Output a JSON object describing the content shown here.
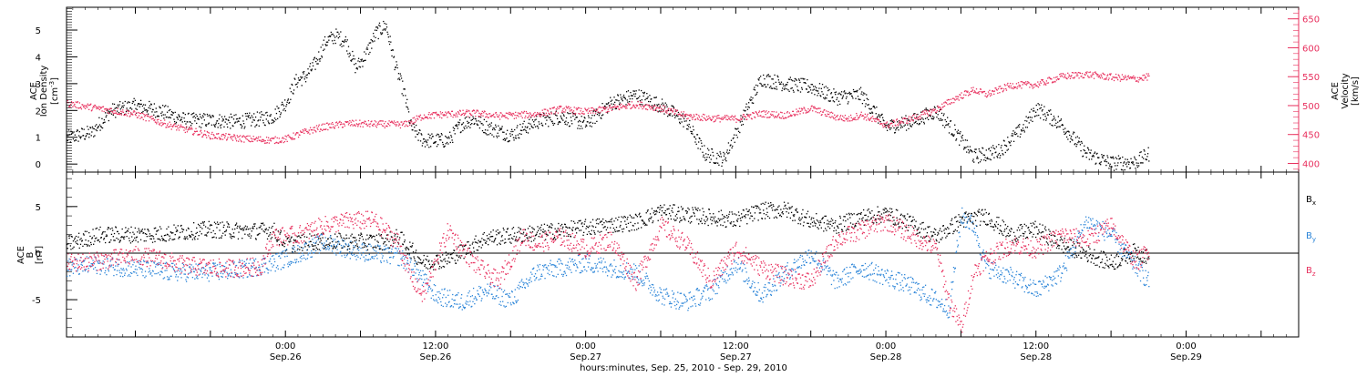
{
  "chart_data": [
    {
      "type": "scatter",
      "panel": "top",
      "y_left": {
        "label_lines": [
          "ACE",
          "Ion Density"
        ],
        "unit_base": "[cm",
        "unit_sup": "-3",
        "unit_end": "]",
        "range": [
          -0.3,
          5.85
        ],
        "ticks": [
          0,
          1,
          2,
          3,
          4,
          5
        ],
        "tick_labels": [
          "0",
          "1",
          "2",
          "3",
          "4",
          "5"
        ],
        "color": "#000000"
      },
      "y_right": {
        "label_lines": [
          "ACE",
          "Velocity",
          "[km/s]"
        ],
        "range": [
          385,
          670
        ],
        "ticks": [
          400,
          450,
          500,
          550,
          600,
          650
        ],
        "tick_labels": [
          "400",
          "450",
          "500",
          "550",
          "600",
          "650"
        ],
        "color": "#e8305e"
      },
      "series": [
        {
          "axis": "left",
          "color": "#000000",
          "knots": [
            [
              -17.5,
              1.0
            ],
            [
              -16.5,
              1.1
            ],
            [
              -15.5,
              1.2
            ],
            [
              -14,
              2.0
            ],
            [
              -12,
              2.2
            ],
            [
              -10,
              2.0
            ],
            [
              -8,
              1.65
            ],
            [
              -6,
              1.65
            ],
            [
              -4,
              1.6
            ],
            [
              -2,
              1.7
            ],
            [
              -1,
              1.8
            ],
            [
              0,
              2.3
            ],
            [
              0.8,
              3.1
            ],
            [
              1.6,
              3.3
            ],
            [
              2.4,
              3.8
            ],
            [
              3.2,
              4.6
            ],
            [
              4.0,
              4.8
            ],
            [
              4.8,
              4.6
            ],
            [
              5.6,
              3.6
            ],
            [
              6.4,
              4.1
            ],
            [
              7.2,
              4.9
            ],
            [
              8.0,
              5.2
            ],
            [
              8.8,
              3.6
            ],
            [
              9.5,
              2.6
            ],
            [
              10.0,
              1.4
            ],
            [
              11,
              0.9
            ],
            [
              12,
              0.9
            ],
            [
              13,
              0.9
            ],
            [
              14,
              1.5
            ],
            [
              15,
              1.7
            ],
            [
              16,
              1.4
            ],
            [
              18,
              1.1
            ],
            [
              20,
              1.6
            ],
            [
              22,
              1.8
            ],
            [
              24,
              1.5
            ],
            [
              26,
              2.3
            ],
            [
              28,
              2.6
            ],
            [
              30,
              2.2
            ],
            [
              32,
              1.6
            ],
            [
              33.5,
              0.4
            ],
            [
              35,
              0.2
            ],
            [
              37,
              2.2
            ],
            [
              38,
              3.2
            ],
            [
              40,
              3.0
            ],
            [
              42,
              2.9
            ],
            [
              44,
              2.5
            ],
            [
              46,
              2.6
            ],
            [
              48,
              1.4
            ],
            [
              50,
              1.6
            ],
            [
              52,
              2.0
            ],
            [
              53.5,
              1.2
            ],
            [
              55,
              0.3
            ],
            [
              57,
              0.5
            ],
            [
              59,
              1.4
            ],
            [
              60,
              2.1
            ],
            [
              62,
              1.5
            ],
            [
              64,
              0.4
            ],
            [
              66,
              0.05
            ],
            [
              68,
              0.1
            ],
            [
              69,
              0.4
            ]
          ]
        },
        {
          "axis": "right",
          "color": "#e8305e",
          "knots": [
            [
              -17.5,
              505
            ],
            [
              -15,
              496
            ],
            [
              -12,
              486
            ],
            [
              -9,
              465
            ],
            [
              -6,
              449
            ],
            [
              -3,
              443
            ],
            [
              -1,
              441
            ],
            [
              0,
              443
            ],
            [
              1.5,
              455
            ],
            [
              3,
              464
            ],
            [
              5,
              470
            ],
            [
              7,
              469
            ],
            [
              9.5,
              468
            ],
            [
              11,
              483
            ],
            [
              13,
              486
            ],
            [
              15,
              488
            ],
            [
              17,
              483
            ],
            [
              20,
              486
            ],
            [
              22,
              495
            ],
            [
              24,
              490
            ],
            [
              26,
              496
            ],
            [
              28,
              503
            ],
            [
              30,
              496
            ],
            [
              32,
              483
            ],
            [
              34,
              479
            ],
            [
              36,
              478
            ],
            [
              38,
              487
            ],
            [
              40,
              484
            ],
            [
              42,
              496
            ],
            [
              44,
              481
            ],
            [
              45,
              478
            ],
            [
              46,
              485
            ],
            [
              48,
              467
            ],
            [
              50,
              478
            ],
            [
              52,
              494
            ],
            [
              53.5,
              513
            ],
            [
              55,
              528
            ],
            [
              56,
              520
            ],
            [
              58,
              536
            ],
            [
              60,
              537
            ],
            [
              62,
              551
            ],
            [
              64,
              555
            ],
            [
              66,
              550
            ],
            [
              68,
              547
            ],
            [
              69,
              551
            ]
          ]
        }
      ]
    },
    {
      "type": "scatter",
      "panel": "bottom",
      "y_left": {
        "label_lines": [
          "ACE",
          "B",
          "[nT]"
        ],
        "range": [
          -9,
          8.7
        ],
        "ticks": [
          -5,
          0,
          5
        ],
        "tick_labels": [
          "-5",
          "0",
          "5"
        ],
        "zero_line": true
      },
      "legend": [
        {
          "base": "B",
          "sub": "x",
          "color": "#000000"
        },
        {
          "base": "B",
          "sub": "y",
          "color": "#2a84d8"
        },
        {
          "base": "B",
          "sub": "z",
          "color": "#e8305e"
        }
      ],
      "series": [
        {
          "name": "Bx",
          "color": "#000000",
          "knots": [
            [
              -17.5,
              1.0
            ],
            [
              -15,
              2.0
            ],
            [
              -10,
              2.1
            ],
            [
              -6,
              2.6
            ],
            [
              -3,
              2.4
            ],
            [
              -1,
              2.5
            ],
            [
              0,
              1.0
            ],
            [
              2,
              1.3
            ],
            [
              4,
              1.3
            ],
            [
              6,
              1.3
            ],
            [
              8,
              1.3
            ],
            [
              9,
              1.8
            ],
            [
              10,
              0.4
            ],
            [
              11,
              -1.0
            ],
            [
              13,
              -0.6
            ],
            [
              16,
              1.7
            ],
            [
              20,
              2.2
            ],
            [
              24,
              2.8
            ],
            [
              28,
              3.4
            ],
            [
              30,
              4.5
            ],
            [
              32,
              4.2
            ],
            [
              34,
              3.9
            ],
            [
              36,
              3.6
            ],
            [
              38,
              4.6
            ],
            [
              40,
              4.7
            ],
            [
              42,
              3.5
            ],
            [
              44,
              3.0
            ],
            [
              46,
              3.9
            ],
            [
              48,
              4.3
            ],
            [
              50,
              3.2
            ],
            [
              52,
              1.8
            ],
            [
              54,
              3.6
            ],
            [
              56,
              4.0
            ],
            [
              58,
              2.0
            ],
            [
              60,
              2.6
            ],
            [
              62,
              1.0
            ],
            [
              64,
              0
            ],
            [
              66,
              -1.0
            ],
            [
              68,
              0.3
            ],
            [
              69,
              -0.5
            ]
          ]
        },
        {
          "name": "By",
          "color": "#2a84d8",
          "knots": [
            [
              -17.5,
              -1.5
            ],
            [
              -15,
              -1.2
            ],
            [
              -12,
              -1.6
            ],
            [
              -9,
              -2.0
            ],
            [
              -6,
              -2.0
            ],
            [
              -3,
              -1.6
            ],
            [
              -1,
              -1.0
            ],
            [
              1,
              0
            ],
            [
              3,
              1.2
            ],
            [
              5,
              0.5
            ],
            [
              7,
              0.0
            ],
            [
              9,
              -0.3
            ],
            [
              10,
              -1.2
            ],
            [
              12,
              -4.5
            ],
            [
              14,
              -5.2
            ],
            [
              16,
              -4.0
            ],
            [
              18,
              -5.0
            ],
            [
              20,
              -2.0
            ],
            [
              24,
              -1.0
            ],
            [
              28,
              -2.0
            ],
            [
              30,
              -4.5
            ],
            [
              32,
              -5.2
            ],
            [
              34,
              -4.0
            ],
            [
              36,
              -1.0
            ],
            [
              38,
              -4.5
            ],
            [
              40,
              -2.0
            ],
            [
              42,
              0
            ],
            [
              44,
              -3.0
            ],
            [
              46,
              -1.5
            ],
            [
              48,
              -2.5
            ],
            [
              50,
              -3.5
            ],
            [
              52,
              -5.0
            ],
            [
              53,
              -6.0
            ],
            [
              54,
              4.0
            ],
            [
              55,
              3.0
            ],
            [
              56,
              -1.5
            ],
            [
              58,
              -2.5
            ],
            [
              60,
              -4.0
            ],
            [
              62,
              -2.0
            ],
            [
              64,
              3.5
            ],
            [
              66,
              2.0
            ],
            [
              68,
              -1.5
            ],
            [
              69,
              -3.0
            ]
          ]
        },
        {
          "name": "Bz",
          "color": "#e8305e",
          "knots": [
            [
              -17.5,
              -1.0
            ],
            [
              -15,
              -0.8
            ],
            [
              -12,
              -0.2
            ],
            [
              -10,
              -0.6
            ],
            [
              -8,
              -1.3
            ],
            [
              -5,
              -1.6
            ],
            [
              -2,
              -1.4
            ],
            [
              -1,
              1.8
            ],
            [
              1,
              2.0
            ],
            [
              3,
              3.0
            ],
            [
              5,
              3.5
            ],
            [
              7,
              3.6
            ],
            [
              8,
              2.4
            ],
            [
              9,
              1.2
            ],
            [
              10,
              -2.5
            ],
            [
              11,
              -4.5
            ],
            [
              12,
              -0.8
            ],
            [
              13,
              2.5
            ],
            [
              15,
              -1.0
            ],
            [
              17,
              -3.0
            ],
            [
              19,
              2.0
            ],
            [
              20,
              1.0
            ],
            [
              22,
              1.8
            ],
            [
              24,
              0.5
            ],
            [
              26,
              1.5
            ],
            [
              28,
              -3.0
            ],
            [
              30,
              3.0
            ],
            [
              32,
              1.0
            ],
            [
              34,
              -3.0
            ],
            [
              36,
              0.5
            ],
            [
              38,
              -1.5
            ],
            [
              40,
              -2.5
            ],
            [
              42,
              -3.0
            ],
            [
              44,
              1.5
            ],
            [
              46,
              2.5
            ],
            [
              48,
              3.5
            ],
            [
              50,
              2.0
            ],
            [
              52,
              0.5
            ],
            [
              53,
              -5.0
            ],
            [
              54,
              -8.0
            ],
            [
              55,
              -2.0
            ],
            [
              56,
              -0.5
            ],
            [
              58,
              1.0
            ],
            [
              60,
              0.5
            ],
            [
              62,
              2.0
            ],
            [
              64,
              1.5
            ],
            [
              66,
              3.0
            ],
            [
              68,
              -1.0
            ],
            [
              69,
              0.5
            ]
          ]
        }
      ]
    }
  ],
  "x_axis": {
    "range_hours": [
      -17.5,
      81.0
    ],
    "ticks": [
      {
        "hour": 0,
        "time": "0:00",
        "date": "Sep.26"
      },
      {
        "hour": 12,
        "time": "12:00",
        "date": "Sep.26"
      },
      {
        "hour": 24,
        "time": "0:00",
        "date": "Sep.27"
      },
      {
        "hour": 36,
        "time": "12:00",
        "date": "Sep.27"
      },
      {
        "hour": 48,
        "time": "0:00",
        "date": "Sep.28"
      },
      {
        "hour": 60,
        "time": "12:00",
        "date": "Sep.28"
      },
      {
        "hour": 72,
        "time": "0:00",
        "date": "Sep.29"
      }
    ],
    "title": "hours:minutes, Sep. 25, 2010 - Sep. 29, 2010",
    "data_end_hour": 69
  }
}
